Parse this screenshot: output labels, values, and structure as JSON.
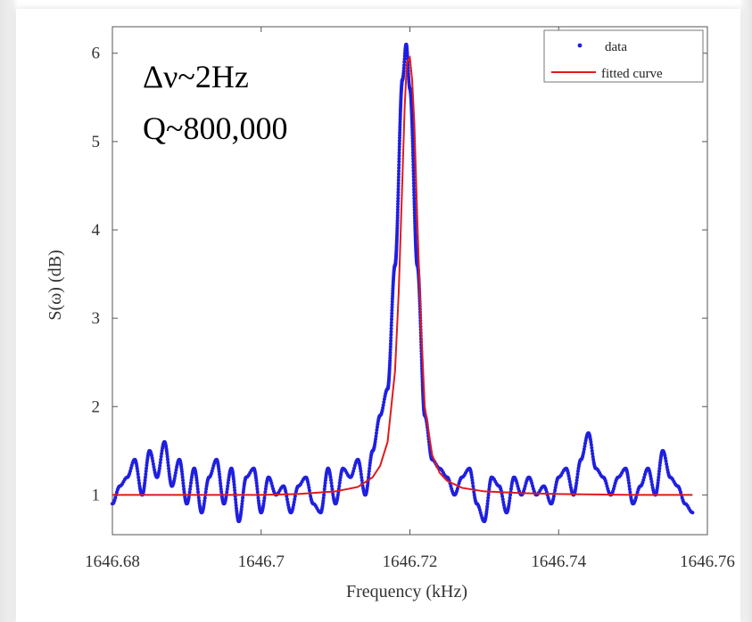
{
  "colors": {
    "data_series": "#1f1fe0",
    "fit_series": "#e01a1a",
    "axis": "#555555",
    "tick_text": "#333333"
  },
  "annotation": {
    "line1": "Δν~2Hz",
    "line2": "Q~800,000"
  },
  "chart_data": {
    "type": "line",
    "title": "",
    "xlabel": "Frequency (kHz)",
    "ylabel": "S(ω) (dB)",
    "xlim": [
      1646.68,
      1646.76
    ],
    "ylim": [
      0.55,
      6.3
    ],
    "xticks": [
      1646.68,
      1646.7,
      1646.72,
      1646.74,
      1646.76
    ],
    "xtick_labels": [
      "1646.68",
      "1646.7",
      "1646.72",
      "1646.74",
      "1646.76"
    ],
    "yticks": [
      1,
      2,
      3,
      4,
      5,
      6
    ],
    "ytick_labels": [
      "1",
      "2",
      "3",
      "4",
      "5",
      "6"
    ],
    "grid": false,
    "legend_position": "top-right",
    "series": [
      {
        "name": "data",
        "style": "dots",
        "color": "#1f1fe0",
        "x": [
          1646.68,
          1646.681,
          1646.682,
          1646.683,
          1646.684,
          1646.685,
          1646.686,
          1646.687,
          1646.688,
          1646.689,
          1646.69,
          1646.691,
          1646.692,
          1646.693,
          1646.694,
          1646.695,
          1646.696,
          1646.697,
          1646.698,
          1646.699,
          1646.7,
          1646.701,
          1646.702,
          1646.703,
          1646.704,
          1646.705,
          1646.706,
          1646.707,
          1646.708,
          1646.709,
          1646.71,
          1646.711,
          1646.712,
          1646.713,
          1646.714,
          1646.715,
          1646.716,
          1646.717,
          1646.718,
          1646.719,
          1646.7195,
          1646.72,
          1646.721,
          1646.722,
          1646.723,
          1646.724,
          1646.725,
          1646.726,
          1646.727,
          1646.728,
          1646.729,
          1646.73,
          1646.731,
          1646.732,
          1646.733,
          1646.734,
          1646.735,
          1646.736,
          1646.737,
          1646.738,
          1646.739,
          1646.74,
          1646.741,
          1646.742,
          1646.743,
          1646.744,
          1646.745,
          1646.746,
          1646.747,
          1646.748,
          1646.749,
          1646.75,
          1646.751,
          1646.752,
          1646.753,
          1646.754,
          1646.755,
          1646.756,
          1646.757,
          1646.758
        ],
        "y": [
          0.9,
          1.1,
          1.2,
          1.4,
          1.0,
          1.5,
          1.2,
          1.6,
          1.1,
          1.4,
          0.9,
          1.3,
          0.8,
          1.2,
          1.4,
          0.9,
          1.3,
          0.7,
          1.2,
          1.3,
          0.8,
          1.2,
          1.0,
          1.1,
          0.8,
          1.1,
          1.2,
          0.9,
          0.8,
          1.3,
          0.9,
          1.3,
          1.2,
          1.4,
          1.0,
          1.5,
          1.9,
          2.2,
          3.6,
          5.7,
          6.1,
          5.6,
          3.6,
          1.9,
          1.4,
          1.3,
          1.2,
          1.0,
          1.2,
          1.3,
          0.9,
          0.7,
          1.2,
          1.1,
          0.8,
          1.2,
          1.0,
          1.2,
          1.0,
          1.1,
          0.9,
          1.2,
          1.3,
          1.0,
          1.4,
          1.7,
          1.3,
          1.2,
          1.0,
          1.2,
          1.3,
          0.9,
          1.1,
          1.3,
          1.0,
          1.5,
          1.2,
          1.1,
          0.9,
          0.8
        ]
      },
      {
        "name": "fitted curve",
        "style": "line",
        "color": "#e01a1a",
        "x": [
          1646.68,
          1646.69,
          1646.7,
          1646.705,
          1646.71,
          1646.713,
          1646.715,
          1646.716,
          1646.717,
          1646.718,
          1646.7185,
          1646.719,
          1646.7193,
          1646.7196,
          1646.72,
          1646.7203,
          1646.7206,
          1646.721,
          1646.7215,
          1646.722,
          1646.723,
          1646.724,
          1646.725,
          1646.727,
          1646.73,
          1646.735,
          1646.74,
          1646.75,
          1646.758
        ],
        "y": [
          1.0,
          1.0,
          1.0,
          1.01,
          1.04,
          1.09,
          1.2,
          1.33,
          1.6,
          2.4,
          3.3,
          4.6,
          5.4,
          5.9,
          5.95,
          5.7,
          5.2,
          4.1,
          2.9,
          2.0,
          1.45,
          1.25,
          1.16,
          1.08,
          1.04,
          1.02,
          1.01,
          1.0,
          1.0
        ]
      }
    ]
  }
}
